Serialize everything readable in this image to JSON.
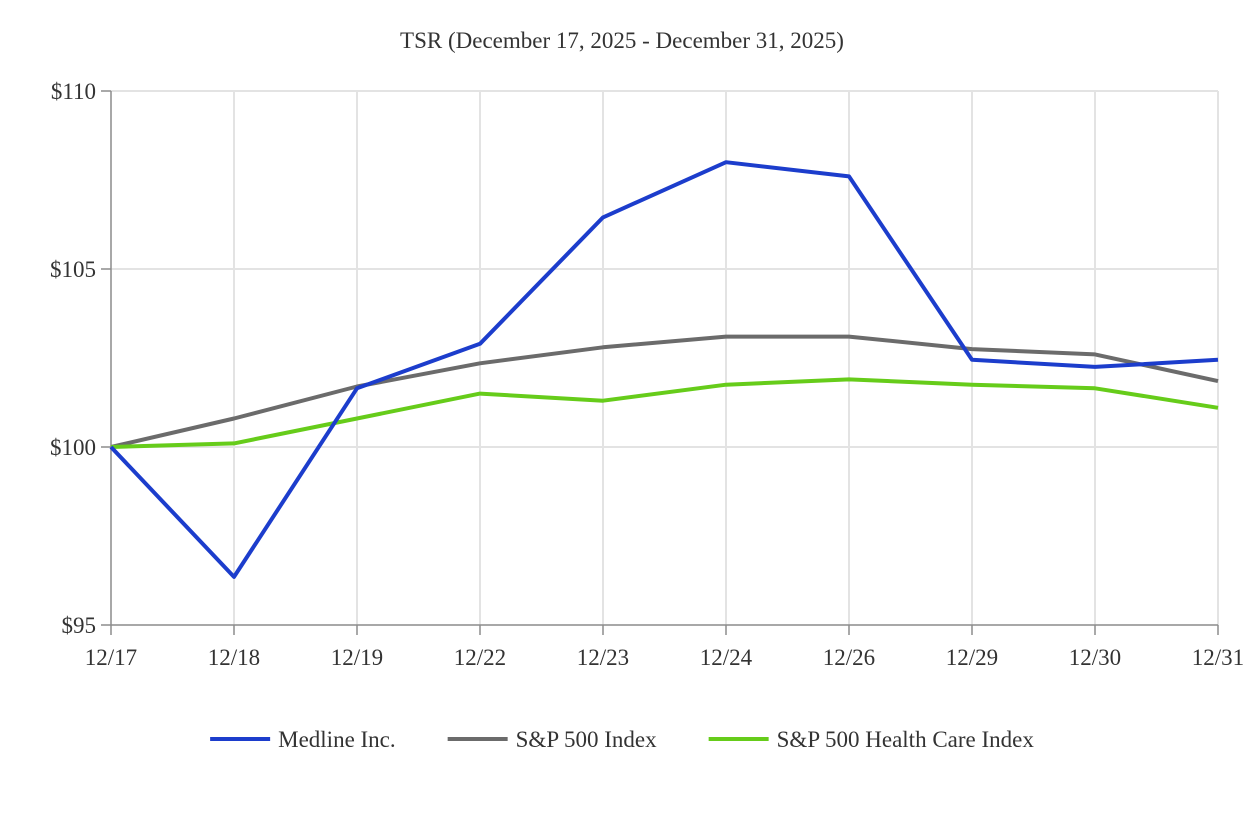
{
  "chart_data": {
    "type": "line",
    "title": "TSR (December 17, 2025 - December 31, 2025)",
    "xlabel": "",
    "ylabel": "",
    "categories": [
      "12/17",
      "12/18",
      "12/19",
      "12/22",
      "12/23",
      "12/24",
      "12/26",
      "12/29",
      "12/30",
      "12/31"
    ],
    "ylim": [
      95,
      110
    ],
    "yticks": [
      95,
      100,
      105,
      110
    ],
    "ytick_labels": [
      "$95",
      "$100",
      "$105",
      "$110"
    ],
    "grid": true,
    "legend_position": "bottom",
    "series": [
      {
        "name": "Medline Inc.",
        "color": "#1c3dcc",
        "values": [
          100.0,
          96.35,
          101.65,
          102.9,
          106.45,
          108.0,
          107.6,
          102.45,
          102.25,
          102.45
        ]
      },
      {
        "name": "S&P 500 Index",
        "color": "#6b6b6b",
        "values": [
          100.0,
          100.8,
          101.7,
          102.35,
          102.8,
          103.1,
          103.1,
          102.75,
          102.6,
          101.85
        ]
      },
      {
        "name": "S&P 500 Health Care Index",
        "color": "#66cc1a",
        "values": [
          100.0,
          100.1,
          100.8,
          101.5,
          101.3,
          101.75,
          101.9,
          101.75,
          101.65,
          101.1
        ]
      }
    ]
  }
}
